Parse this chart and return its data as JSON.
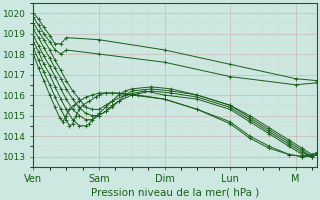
{
  "title": "",
  "xlabel": "Pression niveau de la mer( hPa )",
  "ylabel": "",
  "bg_color": "#cce8e0",
  "grid_color_major": "#c8b8b8",
  "grid_color_minor": "#ddd0d0",
  "line_color": "#1a5c1a",
  "xlim": [
    0,
    4.33
  ],
  "ylim": [
    1012.5,
    1020.5
  ],
  "yticks": [
    1013,
    1014,
    1015,
    1016,
    1017,
    1018,
    1019,
    1020
  ],
  "xtick_positions": [
    0.0,
    1.0,
    2.0,
    3.0,
    4.0
  ],
  "xtick_labels": [
    "Ven",
    "Sam",
    "Dim",
    "Lun",
    "M"
  ],
  "lines": [
    [
      [
        0.0,
        0.08,
        0.16,
        0.25,
        0.33,
        0.42,
        0.5,
        1.0,
        2.0,
        3.0,
        4.0,
        4.33
      ],
      [
        1020.0,
        1019.7,
        1019.3,
        1018.9,
        1018.5,
        1018.5,
        1018.8,
        1018.7,
        1018.2,
        1017.5,
        1016.8,
        1016.7
      ]
    ],
    [
      [
        0.0,
        0.08,
        0.16,
        0.25,
        0.33,
        0.42,
        0.5,
        1.0,
        2.0,
        3.0,
        4.0,
        4.33
      ],
      [
        1019.8,
        1019.4,
        1019.0,
        1018.6,
        1018.2,
        1018.0,
        1018.2,
        1018.0,
        1017.6,
        1016.9,
        1016.5,
        1016.6
      ]
    ],
    [
      [
        0.0,
        0.08,
        0.16,
        0.25,
        0.33,
        0.42,
        0.5,
        0.6,
        0.7,
        0.8,
        0.9,
        1.0,
        1.1,
        1.2,
        1.3,
        1.4,
        1.5,
        1.8,
        2.1,
        2.5,
        3.0,
        3.3,
        3.6,
        3.9,
        4.1,
        4.25,
        4.33
      ],
      [
        1019.5,
        1019.1,
        1018.7,
        1018.2,
        1017.7,
        1017.2,
        1016.7,
        1016.2,
        1015.8,
        1015.4,
        1015.3,
        1015.3,
        1015.5,
        1015.7,
        1016.0,
        1016.2,
        1016.3,
        1016.4,
        1016.3,
        1016.0,
        1015.5,
        1015.0,
        1014.4,
        1013.8,
        1013.4,
        1013.1,
        1013.2
      ]
    ],
    [
      [
        0.0,
        0.08,
        0.16,
        0.25,
        0.33,
        0.42,
        0.5,
        0.6,
        0.7,
        0.8,
        0.9,
        1.0,
        1.1,
        1.2,
        1.3,
        1.4,
        1.5,
        1.8,
        2.1,
        2.5,
        3.0,
        3.3,
        3.6,
        3.9,
        4.1,
        4.25,
        4.33
      ],
      [
        1019.2,
        1018.8,
        1018.3,
        1017.8,
        1017.3,
        1016.8,
        1016.3,
        1015.8,
        1015.4,
        1015.1,
        1015.0,
        1015.0,
        1015.2,
        1015.4,
        1015.7,
        1016.0,
        1016.2,
        1016.3,
        1016.2,
        1016.0,
        1015.5,
        1014.9,
        1014.3,
        1013.7,
        1013.3,
        1013.0,
        1013.1
      ]
    ],
    [
      [
        0.0,
        0.08,
        0.16,
        0.25,
        0.33,
        0.42,
        0.5,
        0.6,
        0.7,
        0.8,
        0.9,
        1.0,
        1.1,
        1.2,
        1.3,
        1.5,
        1.8,
        2.1,
        2.5,
        3.0,
        3.3,
        3.6,
        3.9,
        4.1,
        4.25,
        4.33
      ],
      [
        1018.9,
        1018.4,
        1017.9,
        1017.4,
        1016.9,
        1016.3,
        1015.8,
        1015.3,
        1015.0,
        1014.8,
        1014.8,
        1015.0,
        1015.2,
        1015.5,
        1015.7,
        1016.0,
        1016.2,
        1016.1,
        1015.9,
        1015.4,
        1014.8,
        1014.2,
        1013.6,
        1013.2,
        1013.0,
        1013.1
      ]
    ],
    [
      [
        0.0,
        0.08,
        0.16,
        0.25,
        0.33,
        0.42,
        0.5,
        0.6,
        0.7,
        0.8,
        0.85,
        0.9,
        1.0,
        1.1,
        1.2,
        1.4,
        1.7,
        2.0,
        2.5,
        3.0,
        3.3,
        3.6,
        3.9,
        4.1,
        4.25,
        4.33
      ],
      [
        1018.6,
        1018.1,
        1017.5,
        1017.0,
        1016.4,
        1015.8,
        1015.3,
        1014.8,
        1014.5,
        1014.5,
        1014.6,
        1014.8,
        1015.1,
        1015.4,
        1015.7,
        1016.0,
        1016.2,
        1016.0,
        1015.8,
        1015.3,
        1014.7,
        1014.1,
        1013.5,
        1013.1,
        1013.0,
        1013.1
      ]
    ],
    [
      [
        0.0,
        0.08,
        0.16,
        0.25,
        0.33,
        0.42,
        0.5,
        0.55,
        0.6,
        0.65,
        0.7,
        0.75,
        0.85,
        0.95,
        1.0,
        1.1,
        1.3,
        1.6,
        2.0,
        2.5,
        3.0,
        3.3,
        3.6,
        3.9,
        4.1,
        4.25,
        4.33
      ],
      [
        1018.3,
        1017.7,
        1017.1,
        1016.5,
        1015.9,
        1015.3,
        1014.8,
        1014.5,
        1014.6,
        1015.0,
        1015.3,
        1015.5,
        1015.7,
        1015.9,
        1016.0,
        1016.1,
        1016.1,
        1016.0,
        1015.8,
        1015.3,
        1014.7,
        1014.0,
        1013.5,
        1013.1,
        1013.0,
        1013.1,
        1013.15
      ]
    ],
    [
      [
        0.0,
        0.08,
        0.16,
        0.25,
        0.33,
        0.4,
        0.45,
        0.5,
        0.55,
        0.62,
        0.7,
        0.8,
        0.9,
        1.0,
        1.2,
        1.5,
        2.0,
        2.5,
        3.0,
        3.3,
        3.6,
        3.9,
        4.1,
        4.25,
        4.33
      ],
      [
        1018.0,
        1017.3,
        1016.7,
        1016.0,
        1015.4,
        1014.9,
        1014.7,
        1015.0,
        1015.3,
        1015.5,
        1015.7,
        1015.9,
        1016.0,
        1016.1,
        1016.1,
        1016.0,
        1015.8,
        1015.3,
        1014.6,
        1013.9,
        1013.4,
        1013.1,
        1013.0,
        1013.0,
        1013.1
      ]
    ]
  ]
}
